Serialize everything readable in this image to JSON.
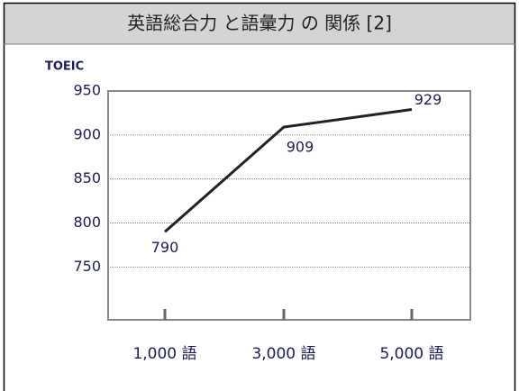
{
  "chart_data": {
    "type": "line",
    "title": "英語総合力 と語彙力 の 関係 [2]",
    "y_label": "TOEIC",
    "categories": [
      "1,000 語",
      "3,000 語",
      "5,000 語"
    ],
    "series": [
      {
        "name": "TOEIC",
        "color": "#222222",
        "values": [
          790,
          909,
          929
        ]
      }
    ],
    "ylim": [
      690,
      950
    ],
    "yticks": [
      750,
      800,
      850,
      900,
      950
    ],
    "grid": true
  }
}
